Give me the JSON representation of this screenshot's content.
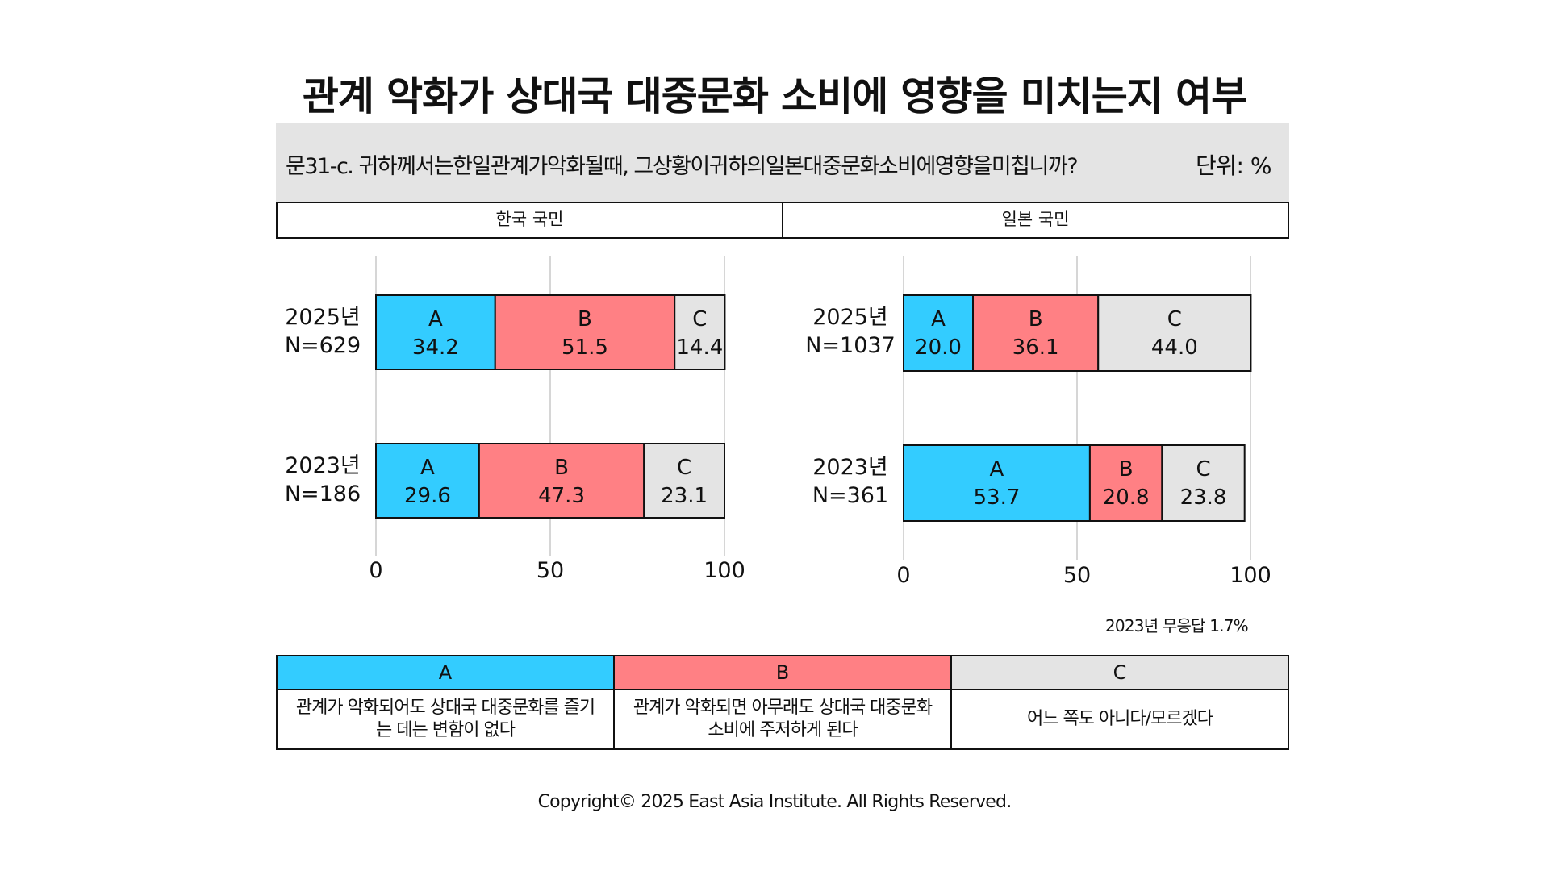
{
  "title": "관계 악화가 상대국 대중문화 소비에 영향을 미치는지 여부",
  "question": "문31-c. 귀하께서는한일관계가악화될때, 그상황이귀하의일본대중문화소비에영향을미칩니까?",
  "unit": "단위: %",
  "note": "2023년 무응답 1.7%",
  "copyright": "Copyright© 2025 East Asia Institute. All Rights Reserved.",
  "colors": {
    "A": "#33ccff",
    "B": "#ff8084",
    "C": "#e4e4e4"
  },
  "legend": [
    {
      "key": "A",
      "desc": "관계가 악화되어도 상대국 대중문화를 즐기는 데는 변함이 없다"
    },
    {
      "key": "B",
      "desc": "관계가 악화되면 아무래도 상대국 대중문화 소비에 주저하게 된다"
    },
    {
      "key": "C",
      "desc": "어느 쪽도 아니다/모르겠다"
    }
  ],
  "chart_data": [
    {
      "type": "bar",
      "orientation": "horizontal",
      "stacked": true,
      "panel": "한국 국민",
      "categories": [
        {
          "year": "2025년",
          "n": "N=629"
        },
        {
          "year": "2023년",
          "n": "N=186"
        }
      ],
      "series": [
        {
          "name": "A",
          "values": [
            34.2,
            29.6
          ]
        },
        {
          "name": "B",
          "values": [
            51.5,
            47.3
          ]
        },
        {
          "name": "C",
          "values": [
            14.4,
            23.1
          ]
        }
      ],
      "xlim": [
        0,
        100
      ],
      "xticks": [
        0,
        50,
        100
      ]
    },
    {
      "type": "bar",
      "orientation": "horizontal",
      "stacked": true,
      "panel": "일본 국민",
      "categories": [
        {
          "year": "2025년",
          "n": "N=1037"
        },
        {
          "year": "2023년",
          "n": "N=361"
        }
      ],
      "series": [
        {
          "name": "A",
          "values": [
            20.0,
            53.7
          ]
        },
        {
          "name": "B",
          "values": [
            36.1,
            20.8
          ]
        },
        {
          "name": "C",
          "values": [
            44.0,
            23.8
          ]
        }
      ],
      "xlim": [
        0,
        100
      ],
      "xticks": [
        0,
        50,
        100
      ]
    }
  ]
}
